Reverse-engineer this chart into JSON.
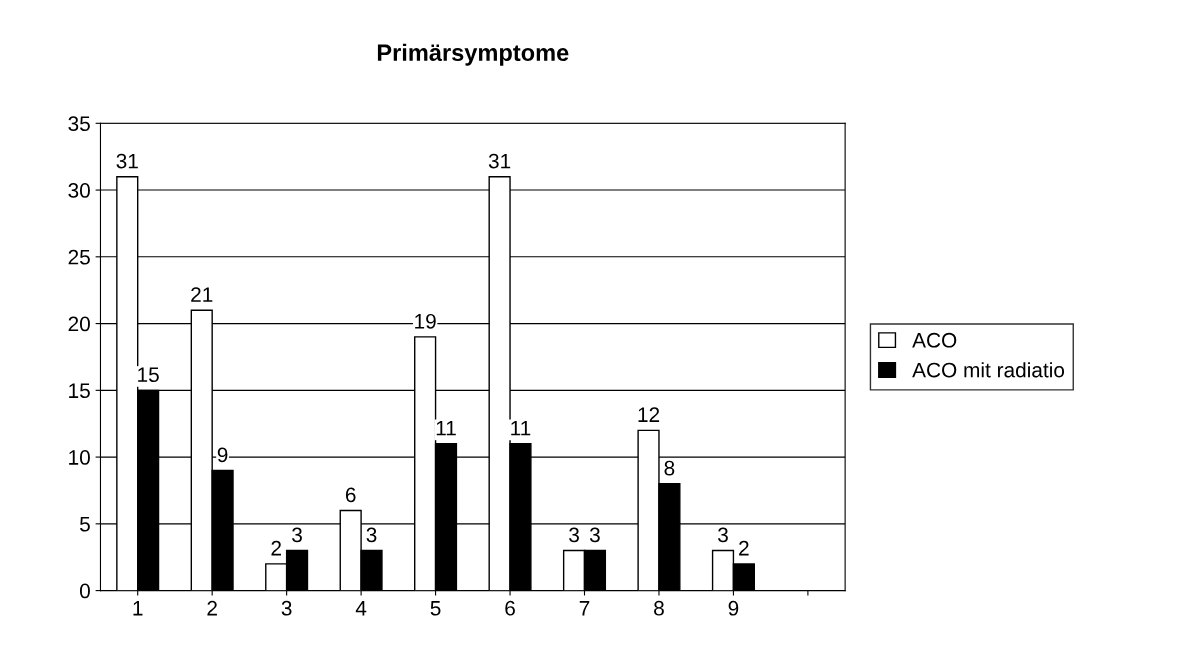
{
  "chart_data": {
    "type": "bar",
    "title": "Primärsymptome",
    "categories": [
      "1",
      "2",
      "3",
      "4",
      "5",
      "6",
      "7",
      "8",
      "9",
      null
    ],
    "series": [
      {
        "name": "ACO",
        "color": "#ffffff",
        "values": [
          31,
          21,
          2,
          6,
          19,
          31,
          3,
          12,
          3,
          null
        ]
      },
      {
        "name": "ACO mit radiatio",
        "color": "#000000",
        "values": [
          15,
          9,
          3,
          3,
          11,
          11,
          3,
          8,
          2,
          null
        ]
      }
    ],
    "ylim": [
      0,
      35
    ],
    "yticks": [
      0,
      5,
      10,
      15,
      20,
      25,
      30,
      35
    ],
    "grid": "y",
    "legend": "right",
    "data_labels": true
  }
}
